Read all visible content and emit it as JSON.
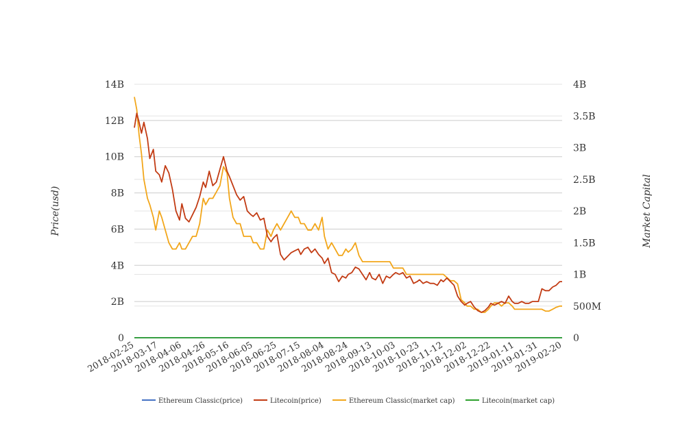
{
  "chart_data": {
    "type": "line",
    "ylabel_left": "Price(usd)",
    "ylabel_right": "Market Capital",
    "ylim_left": [
      0,
      14000000000
    ],
    "ylim_right": [
      0,
      4000000000
    ],
    "left_ticks": [
      "0",
      "2B",
      "4B",
      "6B",
      "8B",
      "10B",
      "12B",
      "14B"
    ],
    "right_ticks": [
      "0",
      "500M",
      "1B",
      "1.5B",
      "2B",
      "2.5B",
      "3B",
      "3.5B",
      "4B"
    ],
    "x_ticks": [
      "2018-02-25",
      "2018-03-17",
      "2018-04-06",
      "2018-04-26",
      "2018-05-16",
      "2018-06-05",
      "2018-06-25",
      "2018-07-15",
      "2018-08-04",
      "2018-08-24",
      "2018-09-13",
      "2018-10-03",
      "2018-10-23",
      "2018-11-12",
      "2018-12-02",
      "2018-12-22",
      "2019-01-11",
      "2019-01-31",
      "2019-02-20"
    ],
    "grid": true,
    "legend_position": "bottom",
    "series": [
      {
        "name": "Ethereum Classic(price)",
        "color": "#4472c4",
        "axis": "left",
        "dates": [
          "2018-02-25",
          "2019-02-20"
        ],
        "values": [
          25,
          5
        ]
      },
      {
        "name": "Litecoin(price)",
        "color": "#c23b13",
        "axis": "left",
        "dates": [
          "2018-02-25",
          "2018-02-27",
          "2018-03-01",
          "2018-03-03",
          "2018-03-05",
          "2018-03-08",
          "2018-03-10",
          "2018-03-13",
          "2018-03-15",
          "2018-03-18",
          "2018-03-20",
          "2018-03-23",
          "2018-03-26",
          "2018-03-29",
          "2018-04-01",
          "2018-04-04",
          "2018-04-06",
          "2018-04-09",
          "2018-04-12",
          "2018-04-15",
          "2018-04-18",
          "2018-04-21",
          "2018-04-24",
          "2018-04-26",
          "2018-04-29",
          "2018-05-02",
          "2018-05-05",
          "2018-05-08",
          "2018-05-11",
          "2018-05-14",
          "2018-05-16",
          "2018-05-19",
          "2018-05-22",
          "2018-05-25",
          "2018-05-28",
          "2018-05-31",
          "2018-06-03",
          "2018-06-05",
          "2018-06-08",
          "2018-06-11",
          "2018-06-14",
          "2018-06-17",
          "2018-06-20",
          "2018-06-22",
          "2018-06-25",
          "2018-06-28",
          "2018-07-01",
          "2018-07-04",
          "2018-07-07",
          "2018-07-10",
          "2018-07-13",
          "2018-07-15",
          "2018-07-18",
          "2018-07-21",
          "2018-07-24",
          "2018-07-27",
          "2018-07-30",
          "2018-08-02",
          "2018-08-04",
          "2018-08-07",
          "2018-08-10",
          "2018-08-13",
          "2018-08-16",
          "2018-08-19",
          "2018-08-22",
          "2018-08-24",
          "2018-08-27",
          "2018-08-30",
          "2018-09-02",
          "2018-09-05",
          "2018-09-08",
          "2018-09-11",
          "2018-09-13",
          "2018-09-16",
          "2018-09-19",
          "2018-09-22",
          "2018-09-25",
          "2018-09-28",
          "2018-10-01",
          "2018-10-03",
          "2018-10-06",
          "2018-10-09",
          "2018-10-12",
          "2018-10-15",
          "2018-10-18",
          "2018-10-21",
          "2018-10-23",
          "2018-10-26",
          "2018-10-29",
          "2018-11-01",
          "2018-11-04",
          "2018-11-07",
          "2018-11-10",
          "2018-11-12",
          "2018-11-15",
          "2018-11-18",
          "2018-11-21",
          "2018-11-24",
          "2018-11-27",
          "2018-11-30",
          "2018-12-02",
          "2018-12-05",
          "2018-12-08",
          "2018-12-11",
          "2018-12-14",
          "2018-12-17",
          "2018-12-20",
          "2018-12-22",
          "2018-12-25",
          "2018-12-28",
          "2018-12-31",
          "2019-01-03",
          "2019-01-06",
          "2019-01-09",
          "2019-01-11",
          "2019-01-14",
          "2019-01-17",
          "2019-01-20",
          "2019-01-23",
          "2019-01-26",
          "2019-01-29",
          "2019-01-31",
          "2019-02-03",
          "2019-02-06",
          "2019-02-09",
          "2019-02-12",
          "2019-02-15",
          "2019-02-18",
          "2019-02-20"
        ],
        "values": [
          11.6,
          12.4,
          11.9,
          11.3,
          11.9,
          11.0,
          9.9,
          10.4,
          9.2,
          9.0,
          8.6,
          9.5,
          9.1,
          8.2,
          7.0,
          6.5,
          7.4,
          6.6,
          6.4,
          6.8,
          7.2,
          7.8,
          8.6,
          8.3,
          9.2,
          8.4,
          8.6,
          9.3,
          10.0,
          9.2,
          8.9,
          8.4,
          7.9,
          7.6,
          7.8,
          7.0,
          6.8,
          6.7,
          6.9,
          6.5,
          6.6,
          5.6,
          5.3,
          5.5,
          5.7,
          4.6,
          4.3,
          4.5,
          4.7,
          4.8,
          4.9,
          4.6,
          4.9,
          5.0,
          4.7,
          4.9,
          4.6,
          4.4,
          4.1,
          4.4,
          3.6,
          3.5,
          3.1,
          3.4,
          3.3,
          3.5,
          3.6,
          3.9,
          3.8,
          3.5,
          3.2,
          3.6,
          3.3,
          3.2,
          3.5,
          3.0,
          3.4,
          3.3,
          3.5,
          3.6,
          3.5,
          3.6,
          3.3,
          3.4,
          3.0,
          3.1,
          3.2,
          3.0,
          3.1,
          3.0,
          3.0,
          2.9,
          3.2,
          3.1,
          3.3,
          3.1,
          2.9,
          2.3,
          2.0,
          1.8,
          1.9,
          2.0,
          1.7,
          1.5,
          1.4,
          1.5,
          1.7,
          1.9,
          1.8,
          1.9,
          2.0,
          1.9,
          2.3,
          2.0,
          1.9,
          1.9,
          2.0,
          1.9,
          1.9,
          2.0,
          2.0,
          2.0,
          2.7,
          2.6,
          2.6,
          2.8,
          2.9,
          3.1,
          3.1
        ]
      },
      {
        "name": "Ethereum Classic(market cap)",
        "color": "#f2a61a",
        "axis": "right",
        "dates": [
          "2018-02-25",
          "2018-02-27",
          "2018-03-01",
          "2018-03-03",
          "2018-03-05",
          "2018-03-08",
          "2018-03-10",
          "2018-03-13",
          "2018-03-15",
          "2018-03-18",
          "2018-03-20",
          "2018-03-23",
          "2018-03-26",
          "2018-03-29",
          "2018-04-01",
          "2018-04-04",
          "2018-04-06",
          "2018-04-09",
          "2018-04-12",
          "2018-04-15",
          "2018-04-18",
          "2018-04-21",
          "2018-04-24",
          "2018-04-26",
          "2018-04-29",
          "2018-05-02",
          "2018-05-05",
          "2018-05-08",
          "2018-05-11",
          "2018-05-14",
          "2018-05-16",
          "2018-05-19",
          "2018-05-22",
          "2018-05-25",
          "2018-05-28",
          "2018-05-31",
          "2018-06-03",
          "2018-06-05",
          "2018-06-08",
          "2018-06-11",
          "2018-06-14",
          "2018-06-17",
          "2018-06-20",
          "2018-06-22",
          "2018-06-25",
          "2018-06-28",
          "2018-07-01",
          "2018-07-04",
          "2018-07-07",
          "2018-07-10",
          "2018-07-13",
          "2018-07-15",
          "2018-07-18",
          "2018-07-21",
          "2018-07-24",
          "2018-07-27",
          "2018-07-30",
          "2018-08-02",
          "2018-08-04",
          "2018-08-07",
          "2018-08-10",
          "2018-08-13",
          "2018-08-16",
          "2018-08-19",
          "2018-08-22",
          "2018-08-24",
          "2018-08-27",
          "2018-08-30",
          "2018-09-02",
          "2018-09-05",
          "2018-09-08",
          "2018-09-11",
          "2018-09-13",
          "2018-09-16",
          "2018-09-19",
          "2018-09-22",
          "2018-09-25",
          "2018-09-28",
          "2018-10-01",
          "2018-10-03",
          "2018-10-06",
          "2018-10-09",
          "2018-10-12",
          "2018-10-15",
          "2018-10-18",
          "2018-10-21",
          "2018-10-23",
          "2018-10-26",
          "2018-10-29",
          "2018-11-01",
          "2018-11-04",
          "2018-11-07",
          "2018-11-10",
          "2018-11-12",
          "2018-11-15",
          "2018-11-18",
          "2018-11-21",
          "2018-11-24",
          "2018-11-27",
          "2018-11-30",
          "2018-12-02",
          "2018-12-05",
          "2018-12-08",
          "2018-12-11",
          "2018-12-14",
          "2018-12-17",
          "2018-12-20",
          "2018-12-22",
          "2018-12-25",
          "2018-12-28",
          "2018-12-31",
          "2019-01-03",
          "2019-01-06",
          "2019-01-09",
          "2019-01-11",
          "2019-01-14",
          "2019-01-17",
          "2019-01-20",
          "2019-01-23",
          "2019-01-26",
          "2019-01-29",
          "2019-01-31",
          "2019-02-03",
          "2019-02-06",
          "2019-02-09",
          "2019-02-12",
          "2019-02-15",
          "2019-02-18",
          "2019-02-20"
        ],
        "values": [
          3.8,
          3.6,
          3.2,
          2.9,
          2.5,
          2.2,
          2.1,
          1.9,
          1.7,
          2.0,
          1.9,
          1.7,
          1.5,
          1.4,
          1.4,
          1.5,
          1.4,
          1.4,
          1.5,
          1.6,
          1.6,
          1.8,
          2.2,
          2.1,
          2.2,
          2.2,
          2.3,
          2.4,
          2.7,
          2.6,
          2.2,
          1.9,
          1.8,
          1.8,
          1.6,
          1.6,
          1.6,
          1.5,
          1.5,
          1.4,
          1.4,
          1.7,
          1.6,
          1.7,
          1.8,
          1.7,
          1.8,
          1.9,
          2.0,
          1.9,
          1.9,
          1.8,
          1.8,
          1.7,
          1.7,
          1.8,
          1.7,
          1.9,
          1.6,
          1.4,
          1.5,
          1.4,
          1.3,
          1.3,
          1.4,
          1.35,
          1.4,
          1.5,
          1.3,
          1.2,
          1.2,
          1.2,
          1.2,
          1.2,
          1.2,
          1.2,
          1.2,
          1.2,
          1.1,
          1.1,
          1.1,
          1.1,
          1.0,
          1.0,
          1.0,
          1.0,
          1.0,
          1.0,
          1.0,
          1.0,
          1.0,
          1.0,
          1.0,
          1.0,
          0.95,
          0.9,
          0.9,
          0.85,
          0.6,
          0.55,
          0.5,
          0.5,
          0.45,
          0.45,
          0.4,
          0.4,
          0.45,
          0.5,
          0.55,
          0.55,
          0.5,
          0.55,
          0.55,
          0.5,
          0.45,
          0.45,
          0.45,
          0.45,
          0.45,
          0.45,
          0.45,
          0.45,
          0.45,
          0.42,
          0.42,
          0.45,
          0.48,
          0.5,
          0.5
        ]
      },
      {
        "name": "Litecoin(market cap)",
        "color": "#2ca02c",
        "axis": "right",
        "dates": [
          "2018-02-25",
          "2019-02-20"
        ],
        "values": [
          0,
          0
        ]
      }
    ]
  }
}
